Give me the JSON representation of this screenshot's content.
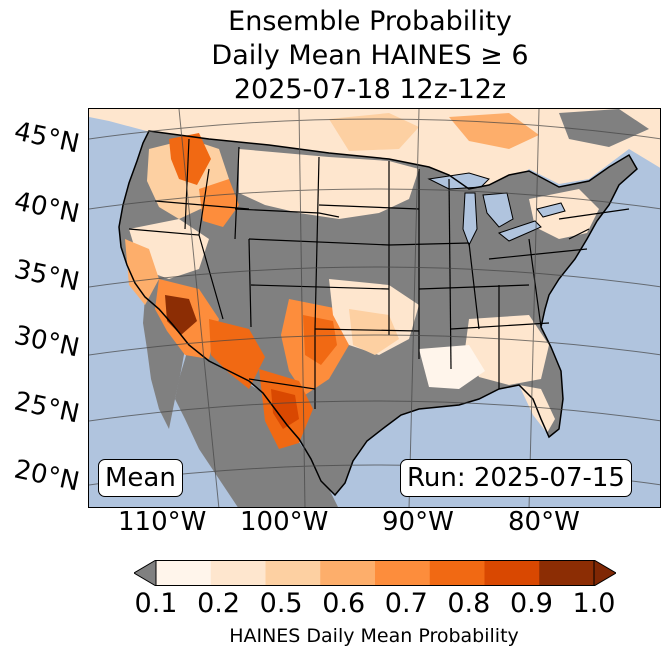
{
  "title": {
    "line1": "Ensemble Probability",
    "line2": "Daily Mean HAINES ≥ 6",
    "line3": "2025-07-18 12z-12z"
  },
  "map": {
    "region": "Continental United States",
    "ocean_color": "#b0c4de",
    "land_below_threshold_color": "#808080",
    "lat_labels": [
      "45°N",
      "40°N",
      "35°N",
      "30°N",
      "25°N",
      "20°N"
    ],
    "lon_labels": [
      "110°W",
      "100°W",
      "90°W",
      "80°W"
    ],
    "stat_label": "Mean",
    "run_label": "Run: 2025-07-15"
  },
  "colorbar": {
    "title": "HAINES Daily Mean Probability",
    "tick_labels": [
      "0.1",
      "0.2",
      "0.5",
      "0.6",
      "0.7",
      "0.8",
      "0.9",
      "1.0"
    ],
    "colors": [
      "#fff5eb",
      "#fee6ce",
      "#fdd0a2",
      "#fdae6b",
      "#fd8d3c",
      "#f16913",
      "#d94801",
      "#8c2d04"
    ],
    "under_color": "#808080",
    "over_color": "#7f2704"
  }
}
